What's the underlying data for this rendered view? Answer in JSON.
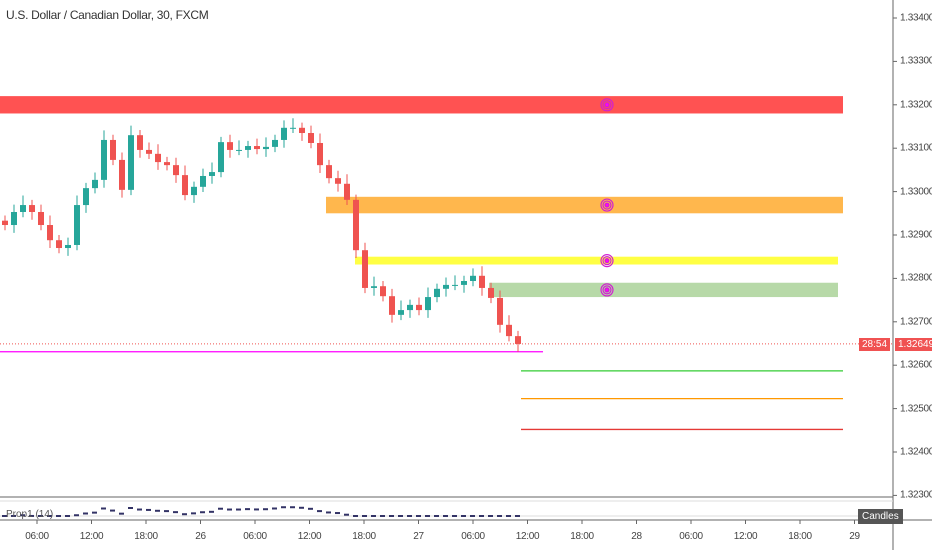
{
  "header": {
    "title": "U.S. Dollar / Canadian Dollar, 30, FXCM"
  },
  "price_axis": {
    "ticks": [
      "1.33400",
      "1.33300",
      "1.33200",
      "1.33100",
      "1.33000",
      "1.32900",
      "1.32800",
      "1.32700",
      "1.32600",
      "1.32500",
      "1.32400",
      "1.32300"
    ],
    "tick_values": [
      1.334,
      1.333,
      1.332,
      1.331,
      1.33,
      1.329,
      1.328,
      1.327,
      1.326,
      1.325,
      1.324,
      1.323
    ],
    "current_price": "1.32649",
    "countdown": "28:54"
  },
  "time_axis": {
    "labels": [
      "06:00",
      "12:00",
      "18:00",
      "26",
      "06:00",
      "12:00",
      "18:00",
      "27",
      "06:00",
      "12:00",
      "18:00",
      "28",
      "06:00",
      "12:00",
      "18:00",
      "29"
    ]
  },
  "indicator": {
    "label": "Prop1 (14)"
  },
  "buttons": {
    "candles": "Candles"
  },
  "colors": {
    "up": "#26a69a",
    "down": "#ef5350",
    "zone_red": "#ff5252",
    "zone_orange": "#ffb74d",
    "zone_yellow": "#ffff44",
    "zone_green": "#b7d9a8",
    "magenta": "#ff00ff"
  },
  "chart_data": {
    "type": "candlestick",
    "symbol": "USDCAD",
    "interval": "30",
    "closes": [
      1.32923,
      1.32953,
      1.32969,
      1.32953,
      1.32923,
      1.32888,
      1.3287,
      1.32877,
      1.32969,
      1.33008,
      1.33027,
      1.33119,
      1.33073,
      1.33004,
      1.3313,
      1.33096,
      1.33087,
      1.33068,
      1.33061,
      1.33038,
      1.32992,
      1.33011,
      1.33036,
      1.33045,
      1.33114,
      1.33096,
      1.33096,
      1.33105,
      1.33098,
      1.33103,
      1.33119,
      1.33147,
      1.33147,
      1.33135,
      1.33112,
      1.33061,
      1.33031,
      1.33018,
      1.32981,
      1.32865,
      1.32778,
      1.32782,
      1.32759,
      1.32716,
      1.32727,
      1.32739,
      1.32727,
      1.32757,
      1.32776,
      1.32785,
      1.32785,
      1.32794,
      1.32806,
      1.32778,
      1.32755,
      1.32693,
      1.32667,
      1.32649
    ],
    "zones": [
      {
        "name": "red",
        "low": 1.3318,
        "high": 1.3322
      },
      {
        "name": "orange",
        "low": 1.3295,
        "high": 1.32988
      },
      {
        "name": "yellow",
        "low": 1.32832,
        "high": 1.3285
      },
      {
        "name": "green",
        "low": 1.32757,
        "high": 1.3279
      }
    ],
    "lines": [
      {
        "color": "magenta",
        "price": 1.32631
      },
      {
        "color": "green",
        "price": 1.32587
      },
      {
        "color": "orange",
        "price": 1.32523
      },
      {
        "color": "red",
        "price": 1.32452
      }
    ],
    "ylim": [
      1.3229,
      1.3344
    ]
  }
}
